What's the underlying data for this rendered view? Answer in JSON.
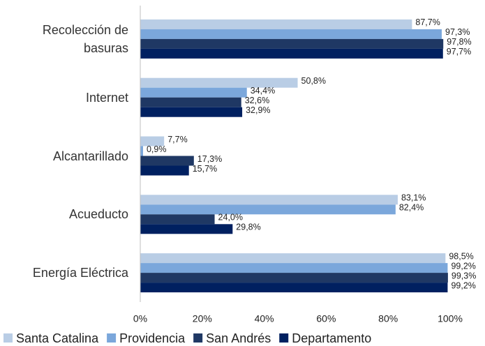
{
  "chart_data": {
    "type": "bar",
    "orientation": "horizontal",
    "categories": [
      "Recolección de basuras",
      "Internet",
      "Alcantarillado",
      "Acueducto",
      "Energía Eléctrica"
    ],
    "series": [
      {
        "name": "Santa Catalina",
        "color": "#b9cde5",
        "values": [
          87.7,
          50.8,
          7.7,
          83.1,
          98.5
        ],
        "value_labels": [
          "87,7%",
          "50,8%",
          "7,7%",
          "83,1%",
          "98,5%"
        ]
      },
      {
        "name": "Providencia",
        "color": "#7ba7db",
        "values": [
          97.3,
          34.4,
          0.9,
          82.4,
          99.2
        ],
        "value_labels": [
          "97,3%",
          "34,4%",
          "0,9%",
          "82,4%",
          "99,2%"
        ]
      },
      {
        "name": "San Andrés",
        "color": "#1f3864",
        "values": [
          97.8,
          32.6,
          17.3,
          24.0,
          99.3
        ],
        "value_labels": [
          "97,8%",
          "32,6%",
          "17,3%",
          "24,0%",
          "99,3%"
        ]
      },
      {
        "name": "Departamento",
        "color": "#002060",
        "values": [
          97.7,
          32.9,
          15.7,
          29.8,
          99.2
        ],
        "value_labels": [
          "97,7%",
          "32,9%",
          "15,7%",
          "29,8%",
          "99,2%"
        ]
      }
    ],
    "xlim": [
      0,
      100
    ],
    "xticks": [
      {
        "value": 0,
        "label": "0%"
      },
      {
        "value": 20,
        "label": "20%"
      },
      {
        "value": 40,
        "label": "40%"
      },
      {
        "value": 60,
        "label": "60%"
      },
      {
        "value": 80,
        "label": "80%"
      },
      {
        "value": 100,
        "label": "100%"
      }
    ],
    "legend": "bottom"
  }
}
